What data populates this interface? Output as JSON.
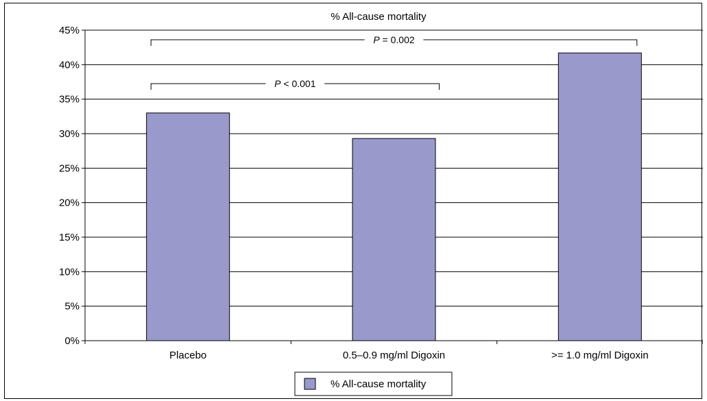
{
  "chart_data": {
    "type": "bar",
    "title": "% All-cause mortality",
    "xlabel": "",
    "ylabel": "",
    "categories": [
      "Placebo",
      "0.5–0.9 mg/ml Digoxin",
      ">= 1.0 mg/ml Digoxin"
    ],
    "series": [
      {
        "name": "% All-cause mortality",
        "values": [
          33.0,
          29.3,
          41.7
        ]
      }
    ],
    "ylim": [
      0,
      45
    ],
    "yticks": [
      "0%",
      "5%",
      "10%",
      "15%",
      "20%",
      "25%",
      "30%",
      "35%",
      "40%",
      "45%"
    ],
    "grid": "horizontal",
    "legend_position": "bottom-center",
    "bar_color": "#9999cc",
    "annotations": [
      {
        "text": "P < 0.001",
        "from": 0,
        "to": 1
      },
      {
        "text": "P = 0.002",
        "from": 0,
        "to": 2
      }
    ]
  }
}
